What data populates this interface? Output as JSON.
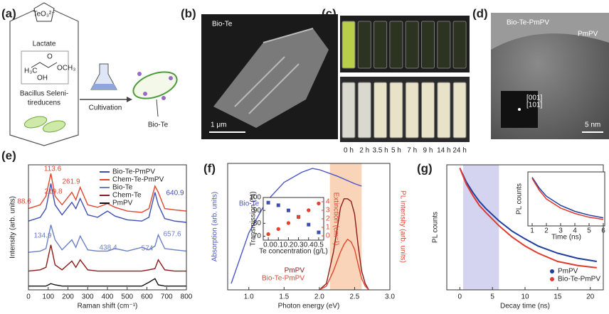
{
  "panels": {
    "labels": [
      "(a)",
      "(b)",
      "(c)",
      "(d)",
      "(e)",
      "(f)",
      "(g)"
    ],
    "a": {
      "ion": "TeO₃²⁻",
      "lactate": "Lactate",
      "structure": [
        "H₃C",
        "O",
        "OCH₃",
        "OH"
      ],
      "bacteria": [
        "Bacillus Seleni-",
        "tireducens"
      ],
      "cultivation": "Cultivation",
      "product": "Bio-Te"
    },
    "b": {
      "label": "Bio-Te",
      "scale": "1 μm"
    },
    "c": {
      "times": [
        "0 h",
        "2 h",
        "3.5 h",
        "5 h",
        "7 h",
        "9 h",
        "14 h",
        "24 h"
      ]
    },
    "d": {
      "label": "Bio-Te-PmPV",
      "shell": "PmPV",
      "planes": [
        "[001]",
        "[101]"
      ],
      "scale": "5 nm"
    }
  },
  "chart_data": [
    {
      "type": "line",
      "xlabel": "Raman shift (cm⁻¹)",
      "ylabel": "Intensity (arb. units)",
      "xlim": [
        0,
        800
      ],
      "xticks": [
        0,
        100,
        200,
        300,
        400,
        500,
        600,
        700,
        800
      ],
      "ylim": [
        0,
        10
      ],
      "x": [
        0,
        60,
        88.6,
        113.6,
        134.9,
        170,
        219.8,
        240,
        261.9,
        300,
        350,
        400,
        438.4,
        500,
        574,
        610,
        640.9,
        657.6,
        690,
        740,
        800
      ],
      "series": [
        {
          "name": "Bio-Te-PmPV",
          "color": "#3f4fb0",
          "values": [
            5.5,
            5.8,
            6.5,
            8.5,
            6.8,
            6,
            7,
            6.5,
            7.3,
            6,
            5.8,
            6.3,
            5.9,
            5.6,
            5.5,
            5.8,
            7.8,
            6.8,
            5.7,
            5.5,
            5.4
          ]
        },
        {
          "name": "Chem-Te-PmPV",
          "color": "#e0462f",
          "values": [
            6.5,
            6.8,
            7.5,
            9.3,
            7.5,
            6.8,
            7.8,
            7.2,
            8.2,
            6.8,
            6.6,
            6.9,
            6.6,
            6.3,
            6.2,
            6.5,
            8.3,
            7.8,
            6.5,
            6.4,
            6.3
          ]
        },
        {
          "name": "Bio-Te",
          "color": "#6a7fc4",
          "values": [
            3,
            3.1,
            3.3,
            5.2,
            4,
            3.2,
            4,
            3.4,
            4.3,
            3.2,
            3.1,
            3.1,
            3.3,
            3.1,
            3.4,
            3.2,
            3.5,
            4.4,
            3.3,
            3.2,
            3.1
          ]
        },
        {
          "name": "Chem-Te",
          "color": "#8b1a1a",
          "values": [
            1.5,
            1.6,
            1.8,
            3.6,
            2,
            1.6,
            2.3,
            1.8,
            2.4,
            1.6,
            1.5,
            1.5,
            1.5,
            1.5,
            1.5,
            1.6,
            1.7,
            2.4,
            1.6,
            1.5,
            1.5
          ]
        },
        {
          "name": "PmPV",
          "color": "#111111",
          "values": [
            0.3,
            0.3,
            0.3,
            0.5,
            0.4,
            0.3,
            0.3,
            0.3,
            0.3,
            0.3,
            0.3,
            0.3,
            0.3,
            0.3,
            0.3,
            0.6,
            0.9,
            0.4,
            0.3,
            0.3,
            0.3
          ]
        }
      ],
      "annotations": [
        {
          "text": "113.6",
          "color": "#e0462f"
        },
        {
          "text": "88.6",
          "color": "#e0462f"
        },
        {
          "text": "219.8",
          "color": "#e0462f"
        },
        {
          "text": "261.9",
          "color": "#e0462f"
        },
        {
          "text": "640.9",
          "color": "#3f4fb0"
        },
        {
          "text": "134.9",
          "color": "#6a7fc4"
        },
        {
          "text": "438.4",
          "color": "#6a7fc4"
        },
        {
          "text": "574",
          "color": "#6a7fc4"
        },
        {
          "text": "657.6",
          "color": "#6a7fc4"
        }
      ]
    },
    {
      "type": "line",
      "xlabel": "Photon energy (eV)",
      "ylabel": "Absorption (arb. units)",
      "y2label": "PL intensity (arb. units)",
      "xlim": [
        0.7,
        3.0
      ],
      "xticks": [
        {
          "value": 1,
          "label": "1.0"
        },
        1.5,
        {
          "value": 2,
          "label": "2.0"
        },
        2.5,
        {
          "value": 3,
          "label": "3.0"
        }
      ],
      "ylim": [
        0,
        1
      ],
      "y2lim": [
        0,
        1
      ],
      "highlight": [
        2.15,
        2.6
      ],
      "highlight_color": "#f7c9a8",
      "series": [
        {
          "name": "Bio-Te",
          "color": "#4a55c8",
          "x": [
            0.75,
            1.0,
            1.25,
            1.5,
            1.75,
            1.9,
            2.0,
            2.25,
            2.5,
            2.6
          ],
          "values": [
            0.05,
            0.45,
            0.7,
            0.85,
            0.93,
            0.96,
            0.95,
            0.9,
            0.84,
            0.82
          ]
        },
        {
          "name": "PmPV",
          "color": "#8b1a1a",
          "axis": "y2",
          "x": [
            2.0,
            2.1,
            2.2,
            2.3,
            2.35,
            2.4,
            2.45,
            2.5,
            2.55,
            2.6,
            2.65,
            2.7
          ],
          "values": [
            0,
            0.05,
            0.3,
            0.65,
            0.72,
            0.72,
            0.7,
            0.6,
            0.35,
            0.15,
            0.05,
            0
          ]
        },
        {
          "name": "Bio-Te-PmPV",
          "color": "#e0462f",
          "axis": "y2",
          "x": [
            2.0,
            2.1,
            2.2,
            2.3,
            2.35,
            2.4,
            2.45,
            2.5,
            2.55,
            2.6,
            2.65,
            2.7
          ],
          "values": [
            0,
            0.03,
            0.15,
            0.3,
            0.36,
            0.4,
            0.38,
            0.32,
            0.2,
            0.09,
            0.03,
            0
          ]
        }
      ]
    },
    {
      "type": "scatter",
      "xlabel": "Te concentration (g/L)",
      "ylabel": "Transmission (%)",
      "y2label": "Extinction (cm⁻¹)",
      "xlim": [
        -0.05,
        0.55
      ],
      "xticks": [
        {
          "value": 0,
          "label": "0.0"
        },
        0.1,
        0.2,
        0.3,
        0.4,
        0.5
      ],
      "ylim": [
        67,
        100
      ],
      "yticks": [
        70,
        80,
        90,
        100
      ],
      "y2lim": [
        -0.5,
        4.5
      ],
      "y2ticks": [
        0,
        1,
        2,
        3,
        4
      ],
      "x": [
        0,
        0.1,
        0.2,
        0.3,
        0.4,
        0.5
      ],
      "series": [
        {
          "color": "#3f4fb0",
          "marker": "square",
          "values": [
            96,
            94,
            90,
            85,
            79,
            73
          ]
        },
        {
          "color": "#e0462f",
          "marker": "circle",
          "axis": "y2",
          "values": [
            0.2,
            0.8,
            1.5,
            2.2,
            3,
            3.8
          ]
        }
      ]
    },
    {
      "type": "line",
      "xlabel": "Decay time (ns)",
      "ylabel": "PL counts",
      "log_y": true,
      "xlim": [
        -2,
        22
      ],
      "xticks": [
        0,
        5,
        10,
        15,
        20
      ],
      "ylim": [
        0.001,
        1.2
      ],
      "highlight": [
        0.5,
        6
      ],
      "highlight_color": "#c9c9ee",
      "x": [
        0,
        1,
        2,
        3,
        4,
        6,
        8,
        10,
        12,
        15,
        18,
        21
      ],
      "series": [
        {
          "name": "PmPV",
          "color": "#1f3fa0",
          "values": [
            1,
            0.45,
            0.25,
            0.15,
            0.1,
            0.05,
            0.028,
            0.018,
            0.012,
            0.008,
            0.006,
            0.005
          ]
        },
        {
          "name": "Bio-Te-PmPV",
          "color": "#e03a2f",
          "values": [
            1,
            0.4,
            0.21,
            0.12,
            0.08,
            0.038,
            0.02,
            0.012,
            0.008,
            0.005,
            0.004,
            0.0035
          ]
        }
      ]
    },
    {
      "type": "line",
      "xlabel": "Time (ns)",
      "ylabel": "PL counts",
      "xlim": [
        0.7,
        6.1
      ],
      "xticks": [
        1,
        2,
        3,
        4,
        5,
        6
      ],
      "ylim": [
        0,
        1
      ],
      "x": [
        1,
        1.5,
        2,
        3,
        4,
        5,
        6
      ],
      "series": [
        {
          "color": "#1f3fa0",
          "values": [
            0.9,
            0.7,
            0.55,
            0.38,
            0.27,
            0.2,
            0.15
          ]
        },
        {
          "color": "#e03a2f",
          "values": [
            0.88,
            0.66,
            0.5,
            0.33,
            0.23,
            0.16,
            0.12
          ]
        }
      ]
    }
  ]
}
